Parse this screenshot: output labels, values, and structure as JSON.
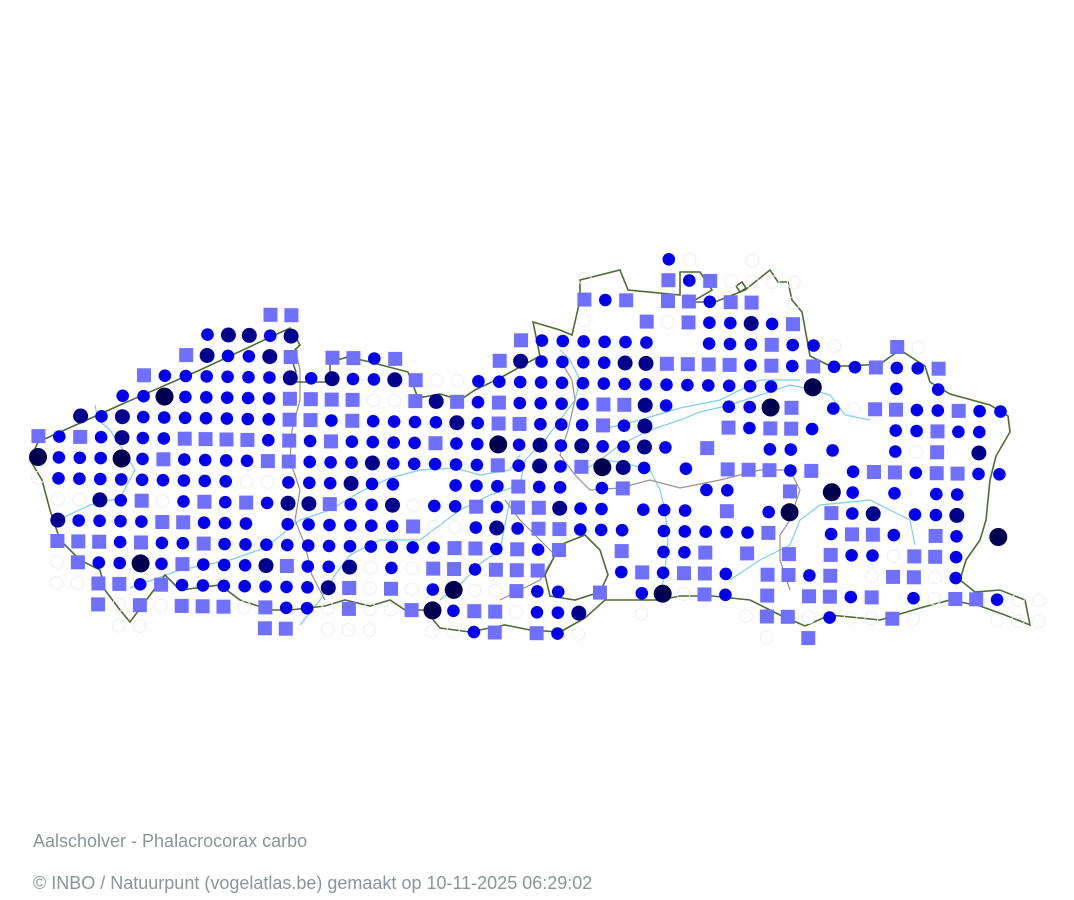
{
  "map": {
    "species_title": "Aalscholver - Phalacrocorax carbo",
    "credit": "© INBO / Natuurpunt (vogelatlas.be) gemaakt op 10-11-2025 06:29:02",
    "colors": {
      "border": "#4f6b35",
      "river": "#7fcfe3",
      "province_border": "#9a9090",
      "background": "#ffffff"
    },
    "symbols": {
      "o": {
        "shape": "circle",
        "color": "#0000ee"
      },
      "d": {
        "shape": "circle",
        "color": "#00008c"
      },
      "D": {
        "shape": "circle",
        "color": "#000050"
      },
      "s": {
        "shape": "square",
        "color": "#7070ff"
      },
      "e": {
        "shape": "empty-circle",
        "color": "#eeeeee"
      }
    },
    "grid_rows": [
      "..............................oe..e.............",
      "..........................e...soseeee...........",
      "..........................sos.ssoss.e...........",
      "...........ss.............e..sesoodos............",
      "........oddod..........soooooo..ooosooe..se......",
      ".......sdoods.ssos....sdooooddssssososooso os.......",
      ".....soooooododoodseeooooooooooooooo.D...o.o.....",
      "....ooDooooosssseesdsosoooossdo..ooDs.oessoosoo..",
      "..dodooooooossosoooodossooosod...sosso...oosoo...",
      "sosodoossssososooooso oDododoodo.s..oo.o..oes.d....",
      "DoooDosoooossooodooooosodosDdo.o.sssos.ossossoo...",
      "eoooooooooeeooodoo..ooosoo.os...oo..s.Do.o.oo...",
      ".eedoseososoddsoodeoosossdoo.ooo.s.oD.sod.ood...",
      ".doooossooo.ooooooseeodossooo.ooooos..osso.so.D...",
      ".sssosoosooooooooooossosos..s.oos.s.s.sooesso....",
      ".esooDosooodsoodeoessosss...ososso.ssos.esseo....",
      ".eessosooooooodseseoDeesoo.s.oDeso.s.ssos.oessoee",
      "...sesesssesooeseesDosseood..e....esseoeese...eee",
      "....ee.....ss.eee..eeos.soe........e.s..........."
    ]
  }
}
